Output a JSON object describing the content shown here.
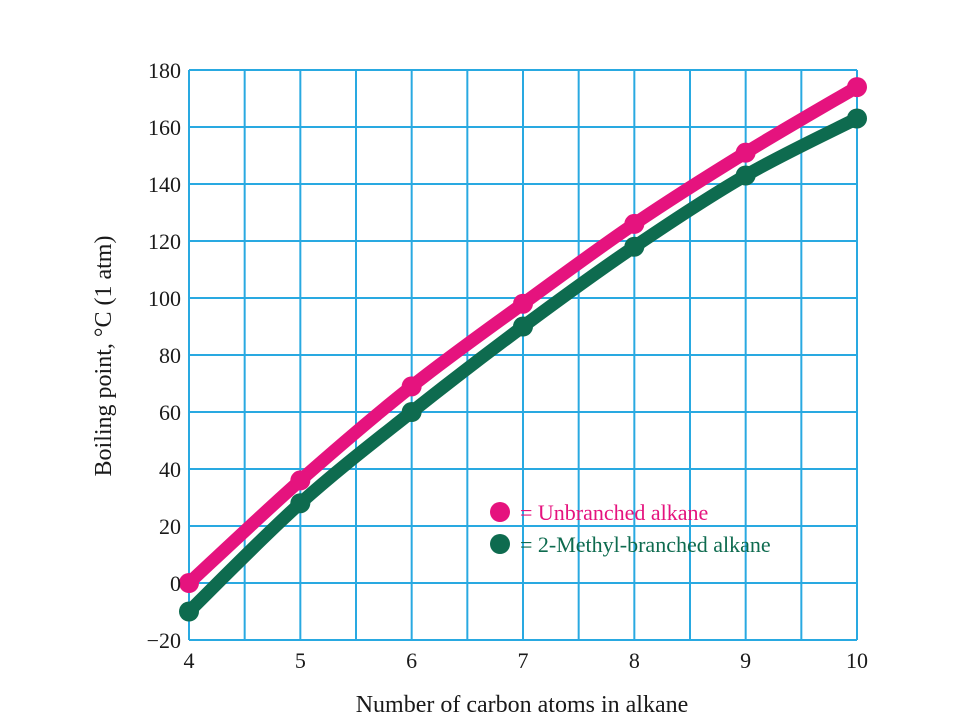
{
  "chart_data": {
    "type": "line",
    "title": "",
    "xlabel": "Number of carbon atoms in alkane",
    "ylabel": "Boiling point, °C (1 atm)",
    "x": [
      4,
      5,
      6,
      7,
      8,
      9,
      10
    ],
    "xlim": [
      4,
      10
    ],
    "ylim": [
      -20,
      180
    ],
    "x_ticks": [
      4,
      5,
      6,
      7,
      8,
      9,
      10
    ],
    "y_ticks": [
      -20,
      0,
      20,
      40,
      60,
      80,
      100,
      120,
      140,
      160,
      180
    ],
    "x_tick_labels": [
      "4",
      "5",
      "6",
      "7",
      "8",
      "9",
      "10"
    ],
    "y_tick_labels": [
      "−20",
      "0",
      "20",
      "40",
      "60",
      "80",
      "100",
      "120",
      "140",
      "160",
      "180"
    ],
    "grid": true,
    "grid_color": "#29a9e1",
    "legend_position": "lower-right",
    "series": [
      {
        "name": "= Unbranched alkane",
        "color": "#e5137e",
        "values": [
          0,
          36,
          69,
          98,
          126,
          151,
          174
        ]
      },
      {
        "name": "= 2-Methyl-branched alkane",
        "color": "#0e6b4f",
        "values": [
          -10,
          28,
          60,
          90,
          118,
          143,
          163
        ]
      }
    ]
  }
}
